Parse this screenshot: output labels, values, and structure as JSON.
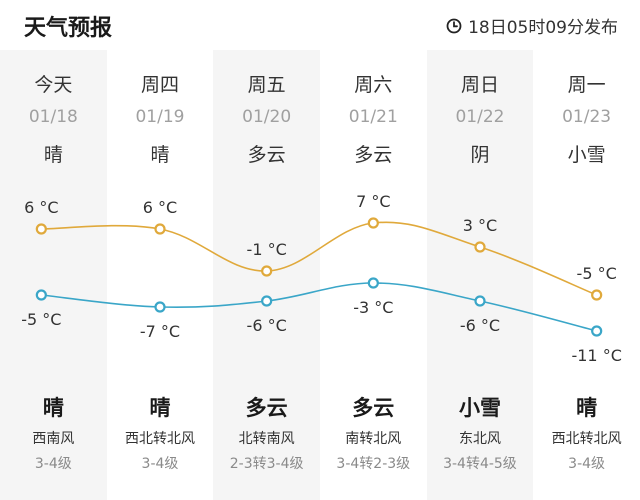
{
  "header": {
    "title": "天气预报",
    "publish_time": "18日05时09分发布",
    "clock_icon": "clock-icon"
  },
  "colors": {
    "high_line": "#e0a93b",
    "low_line": "#3aa6c8",
    "muted_text": "#a0a0a0"
  },
  "days": [
    {
      "weekday": "今天",
      "date": "01/18",
      "cond_day": "晴",
      "cond_night": "晴",
      "wind_dir": "西南风",
      "wind_level": "3-4级",
      "high_label": "6 °C",
      "low_label": "-5 °C"
    },
    {
      "weekday": "周四",
      "date": "01/19",
      "cond_day": "晴",
      "cond_night": "晴",
      "wind_dir": "西北转北风",
      "wind_level": "3-4级",
      "high_label": "6 °C",
      "low_label": "-7 °C"
    },
    {
      "weekday": "周五",
      "date": "01/20",
      "cond_day": "多云",
      "cond_night": "多云",
      "wind_dir": "北转南风",
      "wind_level": "2-3转3-4级",
      "high_label": "-1 °C",
      "low_label": "-6 °C"
    },
    {
      "weekday": "周六",
      "date": "01/21",
      "cond_day": "多云",
      "cond_night": "多云",
      "wind_dir": "南转北风",
      "wind_level": "3-4转2-3级",
      "high_label": "7 °C",
      "low_label": "-3 °C"
    },
    {
      "weekday": "周日",
      "date": "01/22",
      "cond_day": "阴",
      "cond_night": "小雪",
      "wind_dir": "东北风",
      "wind_level": "3-4转4-5级",
      "high_label": "3 °C",
      "low_label": "-6 °C"
    },
    {
      "weekday": "周一",
      "date": "01/23",
      "cond_day": "小雪",
      "cond_night": "晴",
      "wind_dir": "西北转北风",
      "wind_level": "3-4级",
      "high_label": "-5 °C",
      "low_label": "-11 °C"
    }
  ],
  "chart_data": {
    "type": "line",
    "x": [
      "01/18",
      "01/19",
      "01/20",
      "01/21",
      "01/22",
      "01/23"
    ],
    "series": [
      {
        "values": [
          6,
          6,
          -1,
          7,
          3,
          -5
        ]
      },
      {
        "values": [
          -5,
          -7,
          -6,
          -3,
          -6,
          -11
        ]
      }
    ],
    "units": "°C"
  }
}
